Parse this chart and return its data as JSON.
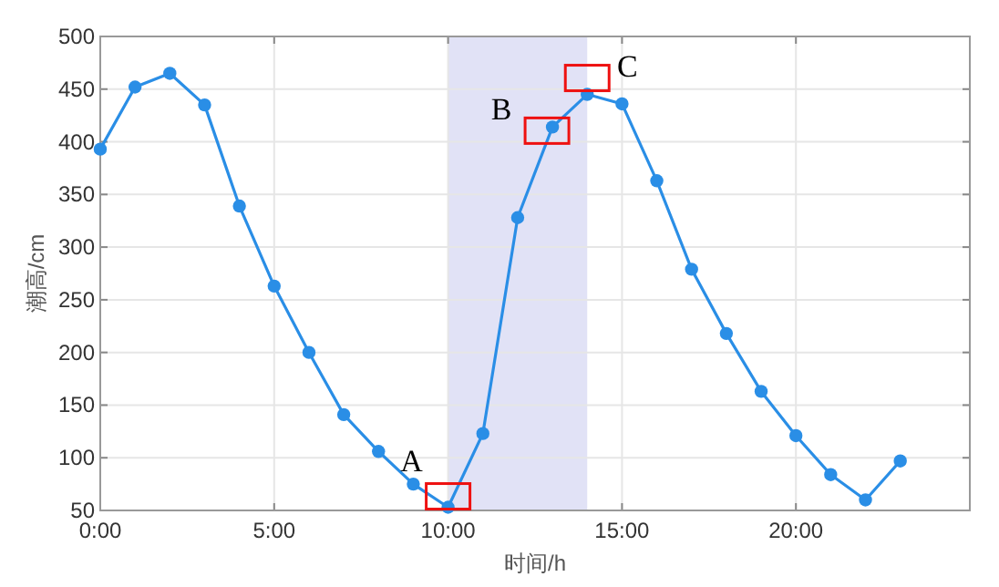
{
  "chart_data": {
    "type": "line",
    "xlabel": "时间/h",
    "ylabel": "潮高/cm",
    "x": [
      0,
      1,
      2,
      3,
      4,
      5,
      6,
      7,
      8,
      9,
      10,
      11,
      12,
      13,
      14,
      15,
      16,
      17,
      18,
      19,
      20,
      21,
      22,
      23
    ],
    "series": [
      {
        "color": "#2a8ee6",
        "values": [
          393,
          452,
          465,
          435,
          339,
          263,
          200,
          141,
          106,
          75,
          53,
          123,
          328,
          414,
          445,
          436,
          363,
          279,
          218,
          163,
          121,
          84,
          60,
          97
        ]
      }
    ],
    "xlim": [
      0,
      25
    ],
    "ylim": [
      50,
      500
    ],
    "xticks": [
      {
        "value": 0,
        "label": "0:00"
      },
      {
        "value": 5,
        "label": "5:00"
      },
      {
        "value": 10,
        "label": "10:00"
      },
      {
        "value": 15,
        "label": "15:00"
      },
      {
        "value": 20,
        "label": "20:00"
      }
    ],
    "yticks": [
      50,
      100,
      150,
      200,
      250,
      300,
      350,
      400,
      450,
      500
    ],
    "grid": true,
    "marker": "circle",
    "line_style": "solid",
    "bands": [
      {
        "axis": "x",
        "from": 10,
        "to": 14,
        "color": "#e1e2f6"
      }
    ],
    "annotations": [
      {
        "text": "A",
        "x": 10,
        "y": 53
      },
      {
        "text": "B",
        "x": 13,
        "y": 414
      },
      {
        "text": "C",
        "x": 14,
        "y": 445
      }
    ]
  }
}
